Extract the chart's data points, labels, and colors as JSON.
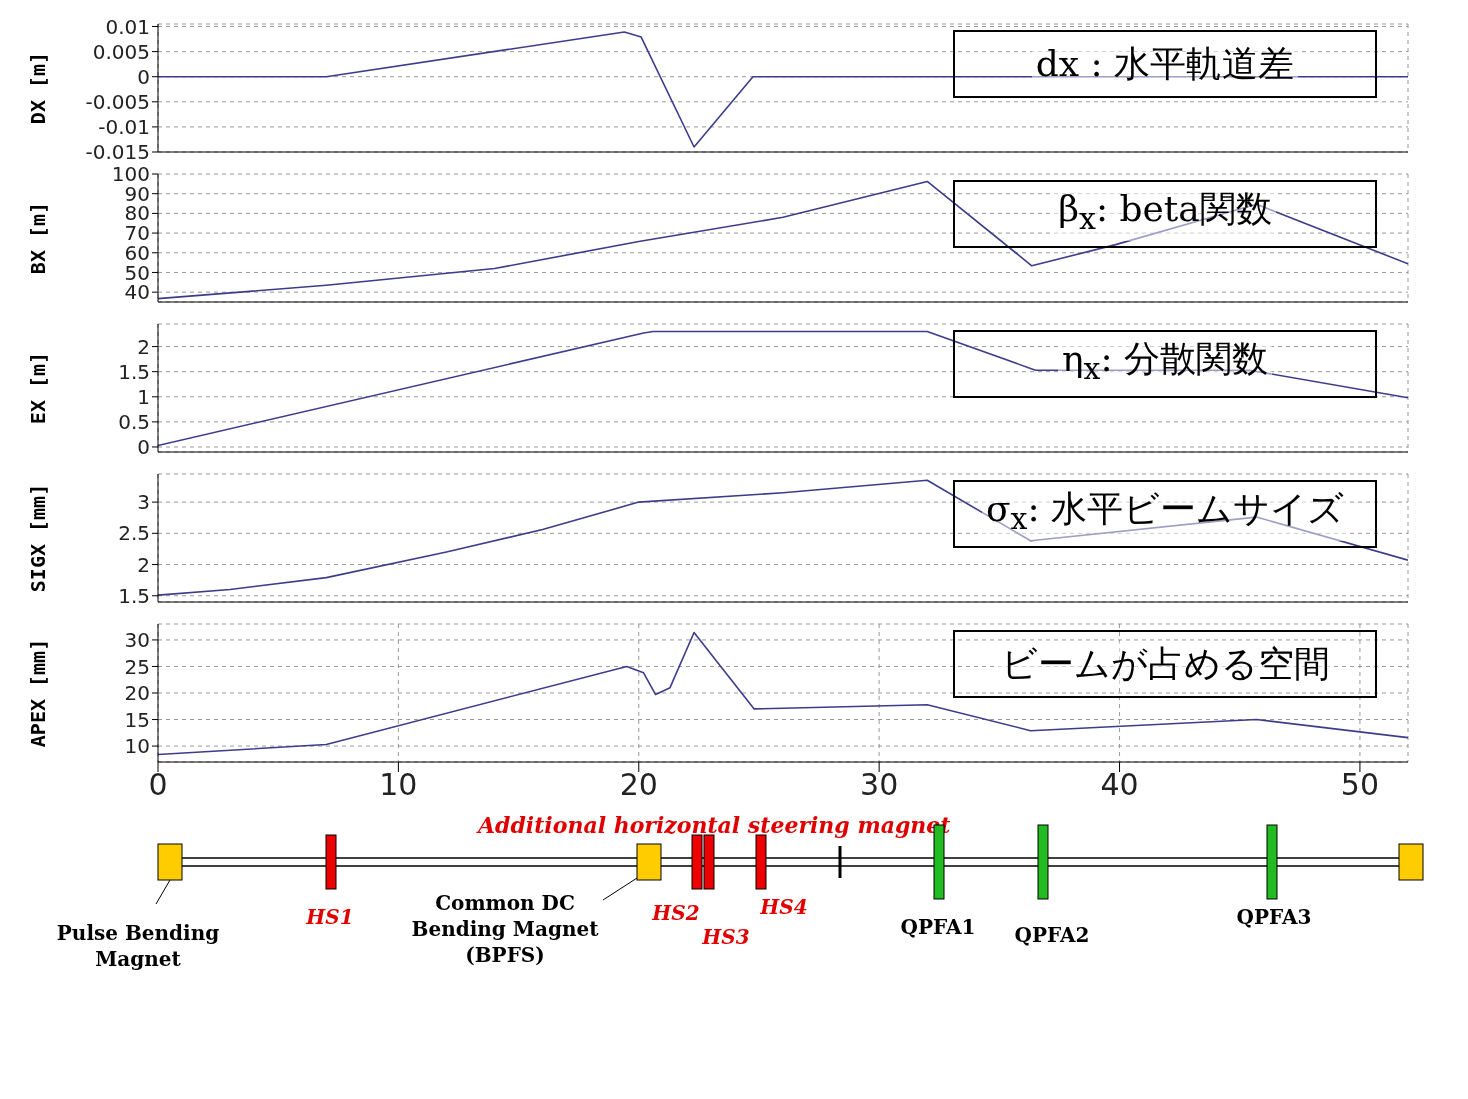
{
  "chart_data": [
    {
      "type": "line",
      "ylabel": "DX [m]",
      "xlim": [
        0,
        52
      ],
      "xticks": [
        0,
        10,
        20,
        30,
        40,
        50
      ],
      "ylim": [
        -0.015,
        0.0105
      ],
      "yticks": [
        -0.015,
        -0.01,
        -0.005,
        0,
        0.005,
        0.01
      ],
      "grid": true,
      "tick_labels": "y",
      "color": "#3c3c8c",
      "x": [
        0,
        7,
        19.4,
        20.1,
        22.3,
        24.75,
        52
      ],
      "values": [
        0,
        0,
        0.0089,
        0.0079,
        -0.014,
        0,
        0
      ],
      "annotations": [
        "dx : 水平軌道差"
      ]
    },
    {
      "type": "line",
      "ylabel": "BX [m]",
      "xlim": [
        0,
        52
      ],
      "xticks": [
        0,
        10,
        20,
        30,
        40,
        50
      ],
      "ylim": [
        35,
        100
      ],
      "yticks": [
        40,
        50,
        60,
        70,
        80,
        90,
        100
      ],
      "grid": true,
      "tick_labels": "y",
      "color": "#3c3c8c",
      "x": [
        0,
        7,
        14,
        20,
        26,
        32,
        36.35,
        39.8,
        45.7,
        52
      ],
      "values": [
        36.7,
        43.5,
        52,
        65.7,
        78,
        96.2,
        53.4,
        64,
        84.6,
        54.4
      ],
      "annotations": [
        "β$_{x}$: beta関数"
      ]
    },
    {
      "type": "line",
      "ylabel": "EX [m]",
      "xlim": [
        0,
        52
      ],
      "xticks": [
        0,
        10,
        20,
        30,
        40,
        50
      ],
      "ylim": [
        -0.1,
        2.45
      ],
      "yticks": [
        0,
        0.5,
        1,
        1.5,
        2
      ],
      "grid": true,
      "tick_labels": "y",
      "color": "#3c3c8c",
      "x": [
        0,
        20.2,
        20.6,
        32,
        36.5,
        45.4,
        52
      ],
      "values": [
        0.03,
        2.27,
        2.3,
        2.3,
        1.53,
        1.53,
        0.98
      ],
      "annotations": [
        "η$_{x}$: 分散関数"
      ]
    },
    {
      "type": "line",
      "ylabel": "SIGX [mm]",
      "xlim": [
        0,
        52
      ],
      "xticks": [
        0,
        10,
        20,
        30,
        40,
        50
      ],
      "ylim": [
        1.4,
        3.45
      ],
      "yticks": [
        1.5,
        2,
        2.5,
        3
      ],
      "grid": true,
      "tick_labels": "y",
      "color": "#3c3c8c",
      "x": [
        0,
        3,
        7,
        12,
        16,
        20,
        26,
        32,
        36.3,
        45.7,
        52
      ],
      "values": [
        1.51,
        1.6,
        1.79,
        2.2,
        2.56,
        3.0,
        3.15,
        3.35,
        2.38,
        2.76,
        2.07
      ],
      "annotations": [
        "σ$_{x}$: 水平ビームサイズ"
      ]
    },
    {
      "type": "line",
      "ylabel": "APEX [mm]",
      "xlim": [
        0,
        52
      ],
      "xticks": [
        0,
        10,
        20,
        30,
        40,
        50
      ],
      "ylim": [
        7,
        33
      ],
      "yticks": [
        10,
        15,
        20,
        25,
        30
      ],
      "grid": true,
      "color": "#3c3c8c",
      "x": [
        0,
        7,
        19.5,
        20.2,
        20.7,
        21.3,
        22.3,
        24.8,
        32,
        36.3,
        45.7,
        52
      ],
      "values": [
        8.4,
        10.3,
        25,
        23.8,
        19.7,
        21,
        31.4,
        17,
        17.8,
        12.9,
        15,
        11.6
      ],
      "annotations": [
        "ビームが占める空間",
        "Additional horizontal steering magnet",
        "Pulse Bending Magnet",
        "HS1",
        "Common DC Bending Magnet (BPFS)",
        "HS2",
        "HS3",
        "HS4",
        "QPFA1",
        "QPFA2",
        "QPFA3"
      ]
    }
  ]
}
